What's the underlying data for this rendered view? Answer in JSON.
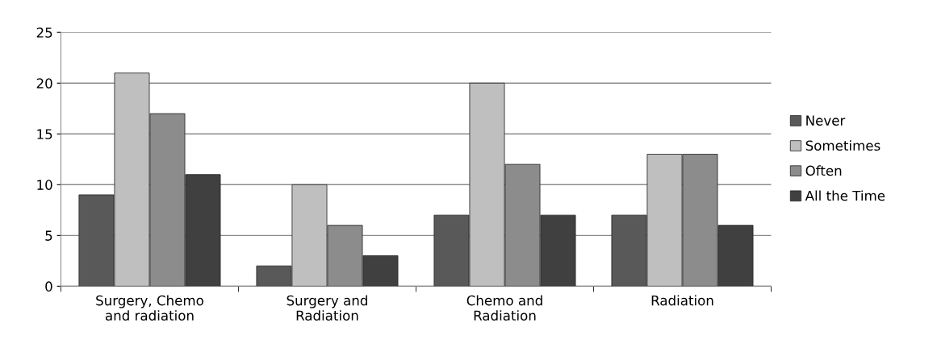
{
  "chart_data": {
    "type": "bar",
    "categories": [
      "Surgery, Chemo\nand radiation",
      "Surgery and\nRadiation",
      "Chemo and\nRadiation",
      "Radiation"
    ],
    "series": [
      {
        "name": "Never",
        "color": "#595959",
        "values": [
          9,
          2,
          7,
          7
        ]
      },
      {
        "name": "Sometimes",
        "color": "#bfbfbf",
        "values": [
          21,
          10,
          20,
          13
        ]
      },
      {
        "name": "Often",
        "color": "#8c8c8c",
        "values": [
          17,
          6,
          12,
          13
        ]
      },
      {
        "name": "All the Time",
        "color": "#404040",
        "values": [
          11,
          3,
          7,
          6
        ]
      }
    ],
    "ylim": [
      0,
      25
    ],
    "yticks": [
      0,
      5,
      10,
      15,
      20,
      25
    ],
    "grid": "y",
    "legend": "right"
  }
}
